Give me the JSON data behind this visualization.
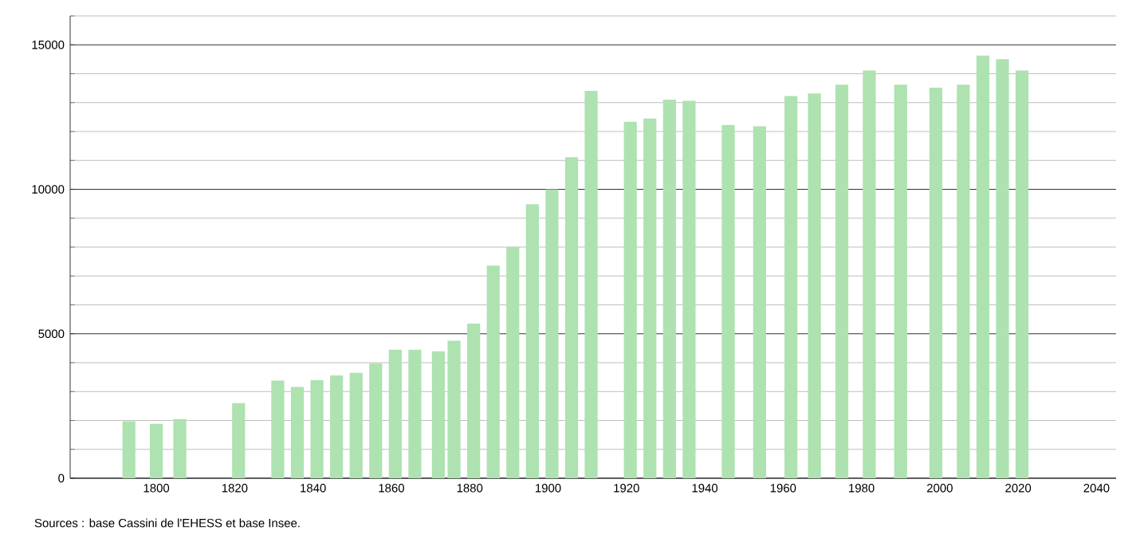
{
  "chart_data": {
    "type": "bar",
    "x": [
      1793,
      1800,
      1806,
      1821,
      1831,
      1836,
      1841,
      1846,
      1851,
      1856,
      1861,
      1866,
      1872,
      1876,
      1881,
      1886,
      1891,
      1896,
      1901,
      1906,
      1911,
      1921,
      1926,
      1931,
      1936,
      1946,
      1954,
      1962,
      1968,
      1975,
      1982,
      1990,
      1999,
      2006,
      2011,
      2016,
      2021
    ],
    "values": [
      1970,
      1880,
      2050,
      2600,
      3380,
      3160,
      3390,
      3560,
      3650,
      3970,
      4450,
      4450,
      4390,
      4760,
      5350,
      7360,
      8010,
      9480,
      10000,
      11110,
      13410,
      12340,
      12450,
      13100,
      13060,
      12230,
      12180,
      13230,
      13320,
      13620,
      14110,
      13620,
      13520,
      13620,
      14630,
      14500,
      14110
    ],
    "color": "#aee2b0",
    "xlim": [
      1778,
      2045
    ],
    "xticks": [
      1800,
      1820,
      1840,
      1860,
      1880,
      1900,
      1920,
      1940,
      1960,
      1980,
      2000,
      2020,
      2040
    ],
    "ylim": [
      0,
      16000
    ],
    "yticks": [
      0,
      {
        "value": 1000,
        "label": null
      },
      {
        "value": 2000,
        "label": null
      },
      {
        "value": 3000,
        "label": null
      },
      {
        "value": 4000,
        "label": null
      },
      5000,
      {
        "value": 6000,
        "label": null
      },
      {
        "value": 7000,
        "label": null
      },
      {
        "value": 8000,
        "label": null
      },
      {
        "value": 9000,
        "label": null
      },
      10000,
      {
        "value": 11000,
        "label": null
      },
      {
        "value": 12000,
        "label": null
      },
      {
        "value": 13000,
        "label": null
      },
      {
        "value": 14000,
        "label": null
      },
      15000,
      {
        "value": 16000,
        "label": null
      }
    ],
    "grid": "y",
    "annotations": [
      "Sources : base Cassini de l'EHESS et base Insee."
    ]
  }
}
